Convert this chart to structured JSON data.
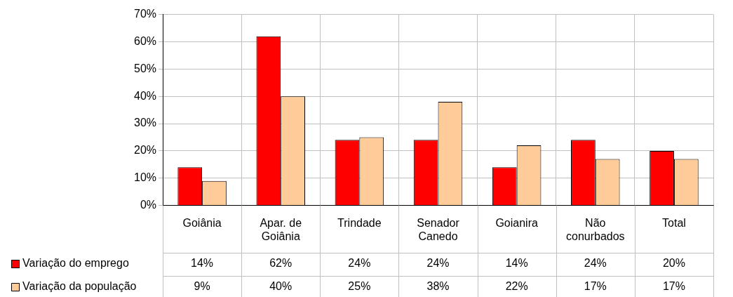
{
  "chart_data": {
    "type": "bar",
    "categories": [
      "Goiânia",
      "Apar. de Goiânia",
      "Trindade",
      "Senador Canedo",
      "Goianira",
      "Não conurbados",
      "Total"
    ],
    "series": [
      {
        "name": "Variação do emprego",
        "color": "#ff0000",
        "values": [
          14,
          62,
          24,
          24,
          14,
          24,
          20
        ],
        "value_labels": [
          "14%",
          "62%",
          "24%",
          "24%",
          "14%",
          "24%",
          "20%"
        ]
      },
      {
        "name": "Variação da população",
        "color": "#ffcc99",
        "values": [
          9,
          40,
          25,
          38,
          22,
          17,
          17
        ],
        "value_labels": [
          "9%",
          "40%",
          "25%",
          "38%",
          "22%",
          "17%",
          "17%"
        ]
      }
    ],
    "ylim": [
      0,
      70
    ],
    "yticks": [
      {
        "value": 0,
        "label": "0%"
      },
      {
        "value": 10,
        "label": "10%"
      },
      {
        "value": 20,
        "label": "20%"
      },
      {
        "value": 30,
        "label": "30%"
      },
      {
        "value": 40,
        "label": "40%"
      },
      {
        "value": 50,
        "label": "50%"
      },
      {
        "value": 60,
        "label": "60%"
      },
      {
        "value": 70,
        "label": "70%"
      }
    ],
    "grid": true,
    "legend": "bottom left"
  }
}
